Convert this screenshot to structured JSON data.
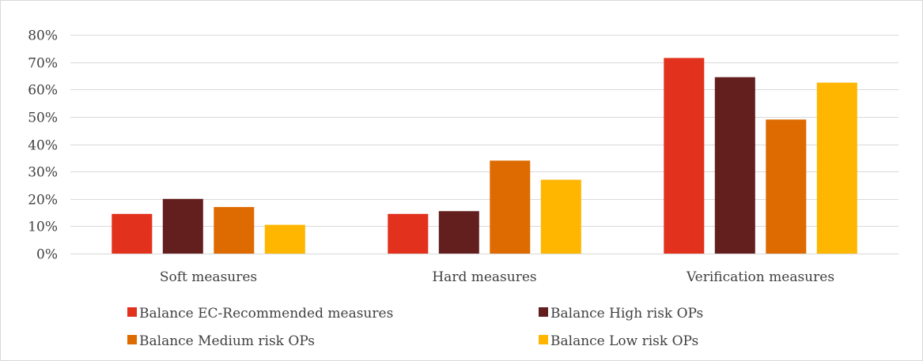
{
  "chart_data": {
    "type": "bar",
    "title": "",
    "xlabel": "",
    "ylabel": "",
    "categories": [
      "Soft measures",
      "Hard measures",
      "Verification measures"
    ],
    "series": [
      {
        "name": "Balance EC-Recommended measures",
        "color": "#e2311d",
        "values": [
          14.5,
          14.5,
          71.5
        ]
      },
      {
        "name": "Balance High risk OPs",
        "color": "#631f1e",
        "values": [
          20.0,
          15.5,
          64.5
        ]
      },
      {
        "name": "Balance Medium risk OPs",
        "color": "#dd6b02",
        "values": [
          17.0,
          34.0,
          49.0
        ]
      },
      {
        "name": "Balance Low risk OPs",
        "color": "#ffb600",
        "values": [
          10.5,
          27.0,
          62.5
        ]
      }
    ],
    "ylim": [
      0,
      80
    ],
    "yticks": [
      "0%",
      "10%",
      "20%",
      "30%",
      "40%",
      "50%",
      "60%",
      "70%",
      "80%"
    ],
    "grid": true,
    "legend": "bottom"
  }
}
